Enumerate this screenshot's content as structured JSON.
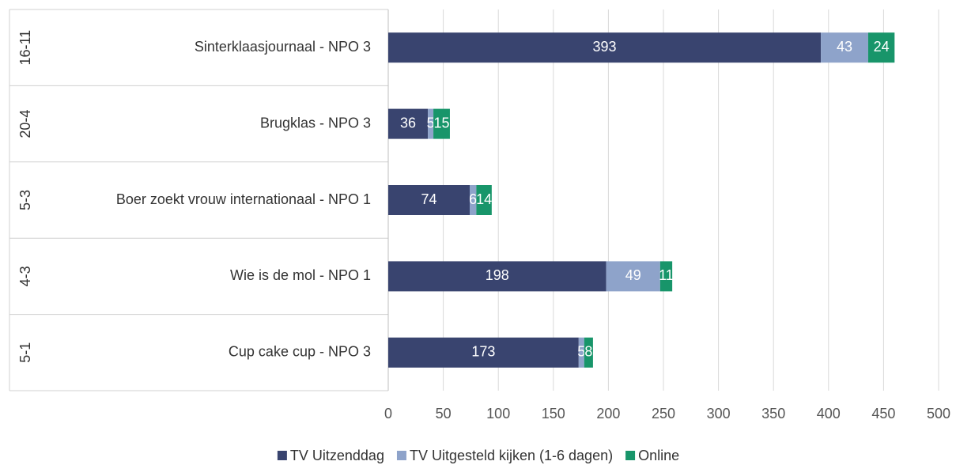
{
  "chart_data": {
    "type": "stacked-barh",
    "groups": [
      "16-11",
      "20-4",
      "5-3",
      "4-3",
      "5-1"
    ],
    "categories": [
      "Sinterklaasjournaal - NPO 3",
      "Brugklas - NPO 3",
      "Boer zoekt vrouw internationaal - NPO 1",
      "Wie is de mol - NPO 1",
      "Cup cake cup - NPO 3"
    ],
    "series": [
      {
        "name": "TV Uitzenddag",
        "color": "#39446f",
        "values": [
          393,
          36,
          74,
          198,
          173
        ]
      },
      {
        "name": "TV Uitgesteld kijken (1-6 dagen)",
        "color": "#8ea3ca",
        "values": [
          43,
          5,
          6,
          49,
          5
        ]
      },
      {
        "name": "Online",
        "color": "#18956a",
        "values": [
          24,
          15,
          14,
          11,
          8
        ]
      }
    ],
    "xlim": [
      0,
      500
    ],
    "xticks": [
      0,
      50,
      100,
      150,
      200,
      250,
      300,
      350,
      400,
      450,
      500
    ],
    "grid": true,
    "legend": "bottom"
  }
}
